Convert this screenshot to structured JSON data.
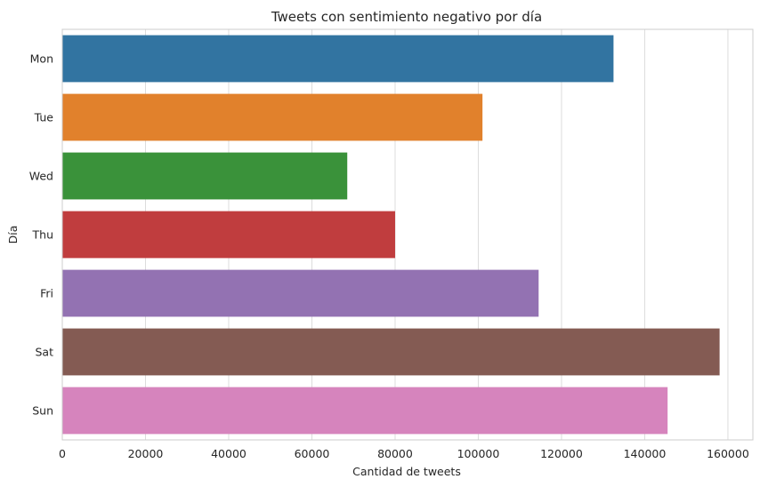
{
  "chart_data": {
    "type": "bar",
    "orientation": "horizontal",
    "title": "Tweets con sentimiento negativo por día",
    "xlabel": "Cantidad de tweets",
    "ylabel": "Día",
    "categories": [
      "Mon",
      "Tue",
      "Wed",
      "Thu",
      "Fri",
      "Sat",
      "Sun"
    ],
    "values": [
      132500,
      101000,
      68500,
      80000,
      114500,
      158000,
      145500
    ],
    "colors": [
      "#3274a1",
      "#e1812c",
      "#3a923a",
      "#c03d3e",
      "#9372b2",
      "#845b53",
      "#d684bd"
    ],
    "xlim": [
      0,
      166000
    ],
    "xticks": [
      0,
      20000,
      40000,
      60000,
      80000,
      100000,
      120000,
      140000,
      160000
    ],
    "grid": true
  }
}
